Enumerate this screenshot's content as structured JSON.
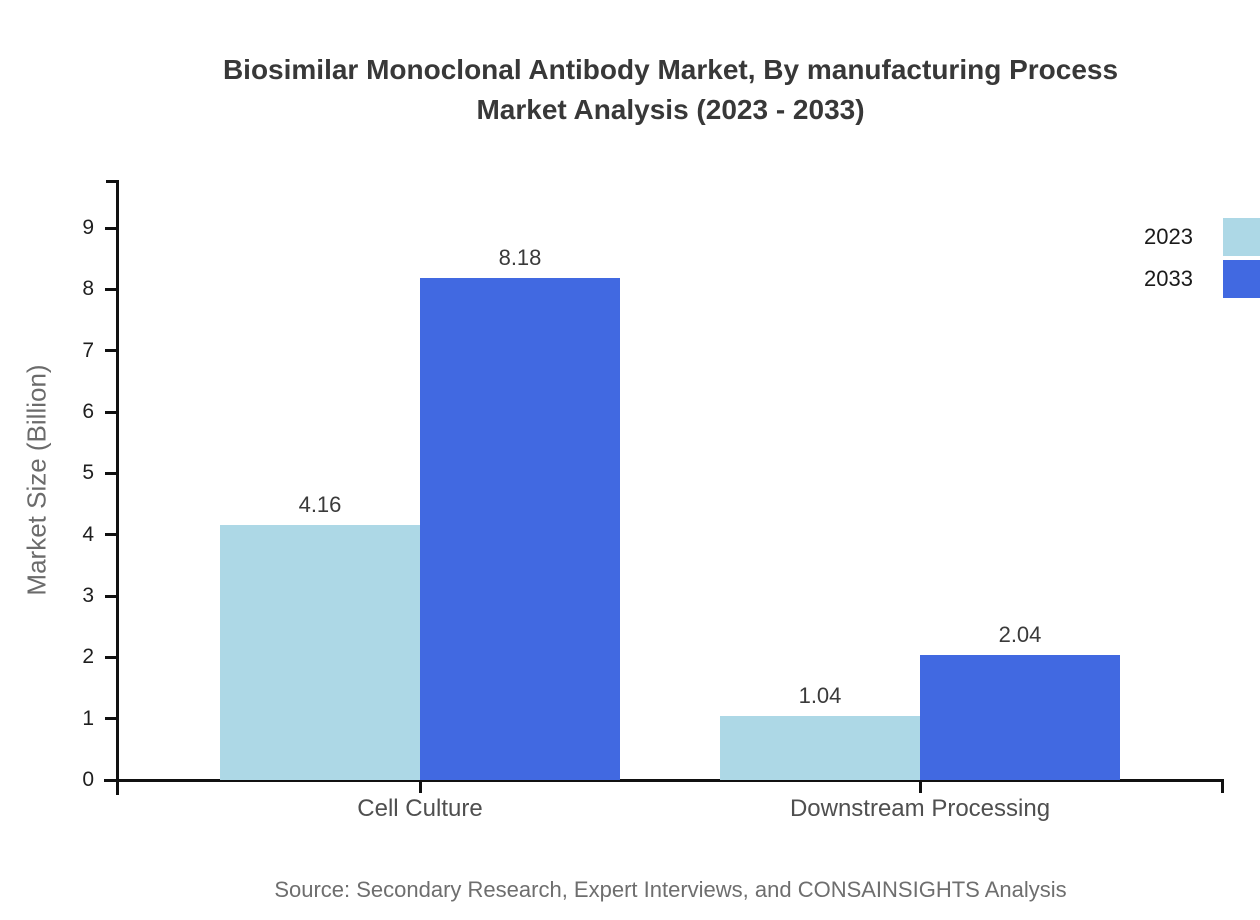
{
  "title": {
    "line1": "Biosimilar Monoclonal Antibody Market, By manufacturing Process",
    "line2": "Market Analysis (2023 - 2033)"
  },
  "source": "Source: Secondary Research, Expert Interviews, and CONSAINSIGHTS Analysis",
  "chart_data": {
    "type": "bar",
    "title": "Biosimilar Monoclonal Antibody Market, By manufacturing Process Market Analysis (2023 - 2033)",
    "categories": [
      "Cell Culture",
      "Downstream Processing"
    ],
    "series": [
      {
        "name": "2023",
        "color": "#ADD8E6",
        "values": [
          4.16,
          1.04
        ]
      },
      {
        "name": "2033",
        "color": "#4169E1",
        "values": [
          8.18,
          2.04
        ]
      }
    ],
    "xlabel": "",
    "ylabel": "Market Size (Billion)",
    "ylim": [
      0,
      9
    ],
    "ytick_step": 1,
    "grid": false,
    "legend_position": "top-right",
    "data_label_format": "0.00"
  }
}
